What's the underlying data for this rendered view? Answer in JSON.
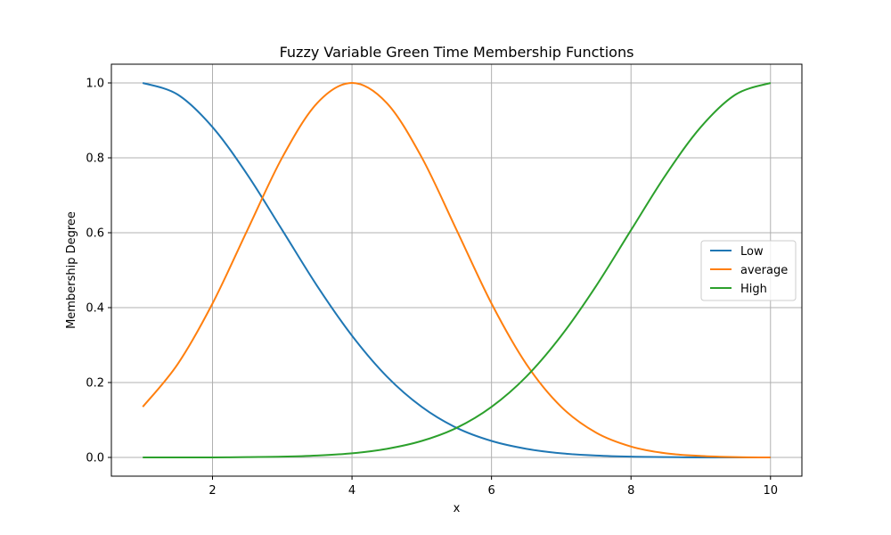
{
  "chart_data": {
    "type": "line",
    "title": "Fuzzy Variable Green Time Membership Functions",
    "xlabel": "x",
    "ylabel": "Membership Degree",
    "xlim": [
      0.55,
      10.45
    ],
    "ylim": [
      -0.05,
      1.05
    ],
    "xticks": [
      2,
      4,
      6,
      8,
      10
    ],
    "yticks": [
      0.0,
      0.2,
      0.4,
      0.6,
      0.8,
      1.0
    ],
    "grid": true,
    "legend_position": "center-right",
    "x": [
      1.0,
      1.5,
      2.0,
      2.5,
      3.0,
      3.5,
      4.0,
      4.5,
      5.0,
      5.5,
      6.0,
      6.5,
      7.0,
      7.5,
      8.0,
      8.5,
      9.0,
      9.5,
      10.0
    ],
    "series": [
      {
        "name": "Low",
        "color": "#1f77b4",
        "values": [
          1.0,
          0.969,
          0.882,
          0.755,
          0.607,
          0.458,
          0.325,
          0.216,
          0.135,
          0.079,
          0.044,
          0.023,
          0.011,
          0.005,
          0.002,
          0.001,
          0.0,
          0.0,
          0.0
        ]
      },
      {
        "name": "average",
        "color": "#ff7f0e",
        "values": [
          0.135,
          0.249,
          0.411,
          0.607,
          0.801,
          0.946,
          1.0,
          0.946,
          0.801,
          0.607,
          0.411,
          0.249,
          0.135,
          0.066,
          0.029,
          0.011,
          0.004,
          0.001,
          0.0
        ]
      },
      {
        "name": "High",
        "color": "#2ca02c",
        "values": [
          0.0,
          0.0,
          0.0,
          0.001,
          0.002,
          0.005,
          0.011,
          0.023,
          0.044,
          0.079,
          0.135,
          0.216,
          0.325,
          0.458,
          0.607,
          0.755,
          0.882,
          0.969,
          1.0
        ]
      }
    ]
  }
}
